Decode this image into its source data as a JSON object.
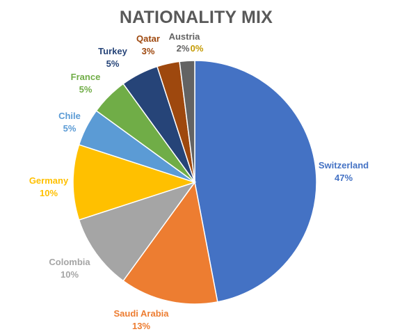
{
  "chart_data": {
    "type": "pie",
    "title": "NATIONALITY MIX",
    "start_angle_deg": 0,
    "direction": "clockwise",
    "slices": [
      {
        "name": "Switzerland",
        "value": 47,
        "label": "47%",
        "color": "#4472C4",
        "label_color": "#4472C4"
      },
      {
        "name": "Saudi Arabia",
        "value": 13,
        "label": "13%",
        "color": "#ED7D31",
        "label_color": "#ED7D31"
      },
      {
        "name": "Colombia",
        "value": 10,
        "label": "10%",
        "color": "#A5A5A5",
        "label_color": "#A5A5A5"
      },
      {
        "name": "Germany",
        "value": 10,
        "label": "10%",
        "color": "#FFC000",
        "label_color": "#FFC000"
      },
      {
        "name": "Chile",
        "value": 5,
        "label": "5%",
        "color": "#5B9BD5",
        "label_color": "#5B9BD5"
      },
      {
        "name": "France",
        "value": 5,
        "label": "5%",
        "color": "#70AD47",
        "label_color": "#70AD47"
      },
      {
        "name": "Turkey",
        "value": 5,
        "label": "5%",
        "color": "#264478",
        "label_color": "#264478"
      },
      {
        "name": "Qatar",
        "value": 3,
        "label": "3%",
        "color": "#9E480E",
        "label_color": "#9E480E"
      },
      {
        "name": "Austria",
        "value": 2,
        "label": "2%",
        "color": "#636363",
        "label_color": "#636363"
      },
      {
        "name": "",
        "value": 0,
        "label": "0%",
        "color": "#997300",
        "label_color": "#C49A00"
      }
    ]
  },
  "colors": {
    "title": "#595959",
    "background": "#FFFFFF",
    "slice_border": "#FFFFFF"
  }
}
